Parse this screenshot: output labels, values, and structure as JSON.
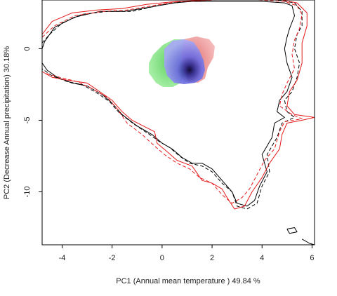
{
  "chart_data": {
    "type": "scatter",
    "title": "",
    "xlabel": "PC1 (Annual mean temperature ) 49.84 %",
    "ylabel": "PC2 (Decrease Annual precipitation) 30.18%",
    "xlim": [
      -4.8,
      6.1
    ],
    "ylim": [
      -13.7,
      3.4
    ],
    "x_ticks": [
      -4,
      -2,
      0,
      2,
      4,
      6
    ],
    "y_ticks": [
      0,
      -5,
      -10
    ],
    "x_tick_labels": [
      "-4",
      "-2",
      "0",
      "2",
      "4",
      "6"
    ],
    "y_tick_labels": [
      "0",
      "-5",
      "-10"
    ],
    "colors": {
      "black_line": "#000000",
      "red_line": "#e41a1c",
      "green_density": "#8fe88f",
      "blue_density": "#8c8cf0",
      "red_density": "#f0a0a0"
    },
    "series": [
      {
        "style": "solid",
        "color": "#000000",
        "points": [
          [
            -4.8,
            0.0
          ],
          [
            -4.7,
            0.5
          ],
          [
            -4.3,
            1.5
          ],
          [
            -3.5,
            2.2
          ],
          [
            -2.5,
            2.6
          ],
          [
            -1.5,
            2.6
          ],
          [
            -0.5,
            2.9
          ],
          [
            0.5,
            3.2
          ],
          [
            1.2,
            3.3
          ],
          [
            2.5,
            3.3
          ],
          [
            4.0,
            3.3
          ],
          [
            4.9,
            3.2
          ],
          [
            5.2,
            3.0
          ],
          [
            5.3,
            2.3
          ],
          [
            5.1,
            1.4
          ],
          [
            5.0,
            0.8
          ],
          [
            4.9,
            0.0
          ],
          [
            5.0,
            -1.0
          ],
          [
            5.2,
            -2.0
          ],
          [
            5.0,
            -3.0
          ],
          [
            4.7,
            -3.6
          ],
          [
            4.6,
            -4.4
          ],
          [
            4.9,
            -4.8
          ],
          [
            4.5,
            -5.2
          ],
          [
            4.4,
            -6.2
          ],
          [
            4.0,
            -7.4
          ],
          [
            4.2,
            -8.6
          ],
          [
            3.9,
            -9.6
          ],
          [
            3.7,
            -10.6
          ],
          [
            3.4,
            -11.0
          ],
          [
            3.0,
            -10.8
          ],
          [
            2.8,
            -10.0
          ],
          [
            2.6,
            -9.6
          ],
          [
            2.3,
            -9.0
          ],
          [
            2.0,
            -8.4
          ],
          [
            1.6,
            -8.0
          ],
          [
            1.2,
            -8.0
          ],
          [
            0.8,
            -7.6
          ],
          [
            0.4,
            -7.0
          ],
          [
            0.0,
            -6.6
          ],
          [
            -0.4,
            -6.0
          ],
          [
            -1.0,
            -5.4
          ],
          [
            -1.6,
            -4.6
          ],
          [
            -2.0,
            -3.8
          ],
          [
            -2.4,
            -3.2
          ],
          [
            -3.0,
            -2.6
          ],
          [
            -3.6,
            -2.4
          ],
          [
            -4.2,
            -2.0
          ],
          [
            -4.6,
            -1.5
          ],
          [
            -4.8,
            -1.0
          ],
          [
            -4.8,
            0.0
          ]
        ]
      },
      {
        "style": "dashed",
        "color": "#000000",
        "points": [
          [
            -4.8,
            0.4
          ],
          [
            -4.5,
            1.0
          ],
          [
            -4.0,
            1.8
          ],
          [
            -3.2,
            2.4
          ],
          [
            -2.2,
            2.6
          ],
          [
            -1.2,
            2.6
          ],
          [
            -0.2,
            3.0
          ],
          [
            0.8,
            3.3
          ],
          [
            2.0,
            3.4
          ],
          [
            3.5,
            3.4
          ],
          [
            4.6,
            3.4
          ],
          [
            5.3,
            3.2
          ],
          [
            5.6,
            2.6
          ],
          [
            5.6,
            1.6
          ],
          [
            5.4,
            1.0
          ],
          [
            5.3,
            0.0
          ],
          [
            5.5,
            -1.0
          ],
          [
            5.4,
            -2.0
          ],
          [
            5.2,
            -3.0
          ],
          [
            4.9,
            -3.6
          ],
          [
            5.0,
            -4.4
          ],
          [
            5.3,
            -4.8
          ],
          [
            4.8,
            -5.2
          ],
          [
            4.6,
            -6.2
          ],
          [
            4.2,
            -7.4
          ],
          [
            4.3,
            -8.6
          ],
          [
            4.0,
            -9.6
          ],
          [
            3.8,
            -10.8
          ],
          [
            3.4,
            -11.2
          ],
          [
            3.0,
            -11.0
          ],
          [
            2.8,
            -10.0
          ],
          [
            2.4,
            -9.4
          ],
          [
            2.0,
            -8.6
          ],
          [
            1.6,
            -8.2
          ],
          [
            1.1,
            -8.0
          ],
          [
            0.7,
            -7.5
          ],
          [
            0.3,
            -6.9
          ],
          [
            -0.1,
            -6.5
          ],
          [
            -0.5,
            -6.0
          ],
          [
            -1.1,
            -5.3
          ],
          [
            -1.7,
            -4.5
          ],
          [
            -2.1,
            -3.7
          ],
          [
            -2.6,
            -3.1
          ],
          [
            -3.2,
            -2.5
          ],
          [
            -3.8,
            -2.3
          ],
          [
            -4.4,
            -1.9
          ],
          [
            -4.8,
            -1.4
          ]
        ]
      },
      {
        "style": "solid",
        "color": "#e41a1c",
        "points": [
          [
            -4.8,
            1.0
          ],
          [
            -4.4,
            1.9
          ],
          [
            -3.6,
            2.5
          ],
          [
            -2.6,
            2.7
          ],
          [
            -1.6,
            2.8
          ],
          [
            -0.6,
            3.1
          ],
          [
            0.6,
            3.3
          ],
          [
            2.0,
            3.4
          ],
          [
            3.6,
            3.4
          ],
          [
            4.8,
            3.4
          ],
          [
            5.4,
            3.2
          ],
          [
            5.8,
            2.5
          ],
          [
            5.8,
            1.6
          ],
          [
            5.6,
            0.4
          ],
          [
            5.6,
            -1.0
          ],
          [
            5.4,
            -2.2
          ],
          [
            5.1,
            -3.0
          ],
          [
            5.0,
            -4.0
          ],
          [
            5.3,
            -4.6
          ],
          [
            6.1,
            -4.8
          ],
          [
            5.6,
            -5.0
          ],
          [
            5.0,
            -5.2
          ],
          [
            4.8,
            -6.0
          ],
          [
            4.7,
            -7.0
          ],
          [
            4.3,
            -8.0
          ],
          [
            4.0,
            -9.0
          ],
          [
            3.6,
            -10.0
          ],
          [
            3.3,
            -11.0
          ],
          [
            2.9,
            -11.2
          ],
          [
            2.6,
            -10.4
          ],
          [
            2.4,
            -9.8
          ],
          [
            2.0,
            -9.4
          ],
          [
            1.6,
            -9.2
          ],
          [
            1.2,
            -8.2
          ],
          [
            0.6,
            -7.8
          ],
          [
            0.2,
            -7.2
          ],
          [
            -0.2,
            -6.6
          ],
          [
            -0.3,
            -5.8
          ],
          [
            -1.2,
            -5.0
          ],
          [
            -1.6,
            -4.4
          ],
          [
            -2.0,
            -3.6
          ],
          [
            -2.5,
            -3.0
          ],
          [
            -3.0,
            -2.4
          ],
          [
            -3.8,
            -2.2
          ],
          [
            -4.4,
            -2.0
          ],
          [
            -4.8,
            -1.6
          ]
        ]
      },
      {
        "style": "dashed",
        "color": "#e41a1c",
        "points": [
          [
            -4.8,
            0.8
          ],
          [
            -4.3,
            1.6
          ],
          [
            -3.5,
            2.3
          ],
          [
            -2.4,
            2.6
          ],
          [
            -1.4,
            2.7
          ],
          [
            -0.4,
            3.0
          ],
          [
            0.7,
            3.3
          ],
          [
            2.2,
            3.4
          ],
          [
            3.8,
            3.4
          ],
          [
            4.9,
            3.3
          ],
          [
            5.4,
            3.0
          ],
          [
            5.6,
            2.4
          ],
          [
            5.5,
            1.4
          ],
          [
            5.3,
            0.6
          ],
          [
            5.2,
            -0.4
          ],
          [
            5.3,
            -1.4
          ],
          [
            5.0,
            -2.4
          ],
          [
            4.8,
            -3.2
          ],
          [
            4.7,
            -4.0
          ],
          [
            5.2,
            -4.6
          ],
          [
            5.6,
            -4.9
          ],
          [
            4.9,
            -5.1
          ],
          [
            4.7,
            -5.8
          ],
          [
            4.5,
            -7.0
          ],
          [
            4.1,
            -7.8
          ],
          [
            3.8,
            -8.8
          ],
          [
            3.5,
            -9.8
          ],
          [
            3.2,
            -10.4
          ],
          [
            2.8,
            -10.8
          ],
          [
            2.4,
            -10.2
          ],
          [
            2.0,
            -9.4
          ],
          [
            1.5,
            -9.0
          ],
          [
            1.1,
            -8.4
          ],
          [
            0.6,
            -8.0
          ],
          [
            0.1,
            -7.4
          ],
          [
            -0.3,
            -6.8
          ],
          [
            -0.8,
            -6.0
          ],
          [
            -1.4,
            -5.2
          ],
          [
            -1.8,
            -4.2
          ],
          [
            -2.2,
            -3.4
          ],
          [
            -2.8,
            -2.8
          ],
          [
            -3.4,
            -2.3
          ],
          [
            -4.1,
            -2.0
          ],
          [
            -4.7,
            -1.7
          ]
        ]
      },
      {
        "style": "solid",
        "color": "#000000",
        "points": [
          [
            5.0,
            -12.6
          ],
          [
            5.3,
            -12.5
          ],
          [
            5.4,
            -12.8
          ],
          [
            5.1,
            -12.9
          ],
          [
            5.0,
            -12.6
          ]
        ]
      },
      {
        "style": "solid",
        "color": "#000000",
        "points": [
          [
            5.6,
            -13.3
          ],
          [
            5.9,
            -13.6
          ],
          [
            6.1,
            -13.7
          ]
        ]
      }
    ]
  }
}
